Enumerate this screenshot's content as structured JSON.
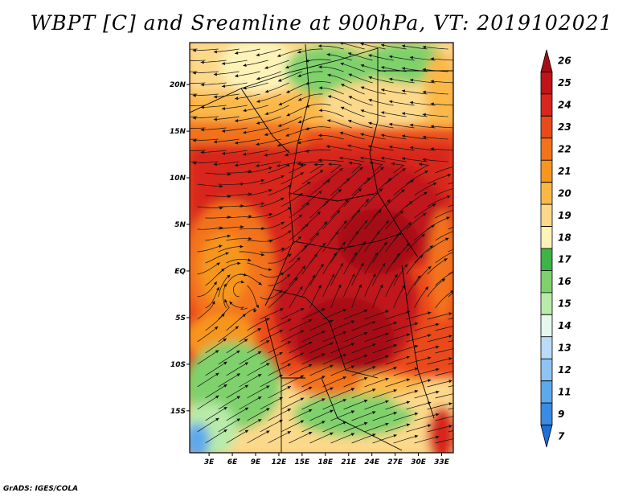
{
  "title": "WBPT [C] and Sreamline at 900hPa, VT: 2019102021",
  "credit": "GrADS: IGES/COLA",
  "map": {
    "lat_labels": [
      "20N",
      "15N",
      "10N",
      "5N",
      "EQ",
      "5S",
      "10S",
      "15S"
    ],
    "lat_values": [
      20,
      15,
      10,
      5,
      0,
      -5,
      -10,
      -15
    ],
    "lon_labels": [
      "3E",
      "6E",
      "9E",
      "12E",
      "15E",
      "18E",
      "21E",
      "24E",
      "27E",
      "30E",
      "33E"
    ],
    "lon_values": [
      3,
      6,
      9,
      12,
      15,
      18,
      21,
      24,
      27,
      30,
      33
    ],
    "lon_range": [
      0.5,
      34.5
    ],
    "lat_range": [
      -19.5,
      24.5
    ]
  },
  "colorbar": {
    "levels": [
      "26",
      "25",
      "24",
      "23",
      "22",
      "21",
      "20",
      "19",
      "18",
      "17",
      "16",
      "15",
      "14",
      "13",
      "12",
      "11",
      "9",
      "7"
    ],
    "colors": [
      "#a50f15",
      "#c0141a",
      "#d8261d",
      "#ea4a1b",
      "#f3731c",
      "#f7961f",
      "#fbb848",
      "#fcd98a",
      "#fdf3b8",
      "#3eb447",
      "#7fd16c",
      "#b8eba9",
      "#e6f8ee",
      "#b9dcf7",
      "#8fc4f2",
      "#5ea8ec",
      "#3a8be3",
      "#1f6fd9"
    ]
  }
}
